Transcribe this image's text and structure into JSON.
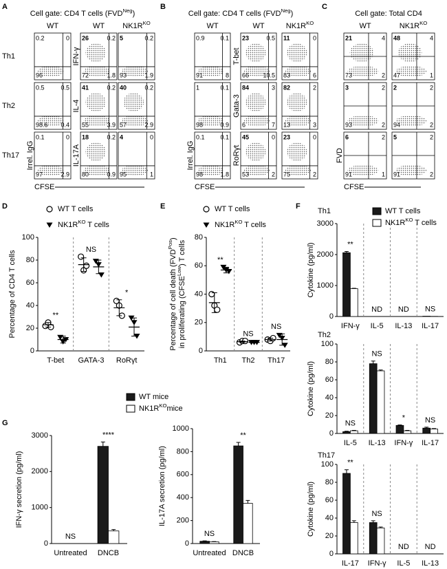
{
  "panel_letters": [
    "A",
    "B",
    "C",
    "D",
    "E",
    "F",
    "G"
  ],
  "flow_panels": [
    {
      "title": [
        "Cell gate: CD4 T cells (FVD",
        "Neg",
        ")"
      ],
      "columns": [
        "WT",
        "WT",
        [
          "NK1R",
          "KO"
        ]
      ],
      "row_labels": [
        "Th1",
        "Th2",
        "Th17"
      ],
      "xlabel": "CFSE",
      "plots": [
        [
          {
            "quadrants": [
              0.2,
              0,
              96,
              null
            ]
          },
          {
            "ylabel": "IFN-γ",
            "quadrants": [
              26,
              0.2,
              72,
              1.8
            ]
          },
          {
            "quadrants": [
              5,
              0.2,
              93,
              1.9
            ]
          }
        ],
        [
          {
            "quadrants": [
              0.5,
              0.5,
              98.6,
              0.4
            ]
          },
          {
            "ylabel": "IL-4",
            "quadrants": [
              41,
              0.2,
              55,
              3.9
            ]
          },
          {
            "quadrants": [
              40,
              0.2,
              57,
              2.9
            ]
          }
        ],
        [
          {
            "ylabel": "Irrel. IgG",
            "quadrants": [
              0.1,
              0,
              97,
              2.9
            ]
          },
          {
            "ylabel": "IL-17A",
            "quadrants": [
              18,
              0.2,
              80,
              0.9
            ]
          },
          {
            "quadrants": [
              4,
              0,
              95,
              1
            ]
          }
        ]
      ]
    },
    {
      "title": [
        "Cell gate: CD4 T cells (FVD",
        "Neg",
        ")"
      ],
      "columns": [
        "WT",
        "WT",
        [
          "NK1R",
          "KO"
        ]
      ],
      "xlabel": "CFSE",
      "plots": [
        [
          {
            "quadrants": [
              0.9,
              0.1,
              91,
              8
            ]
          },
          {
            "ylabel": "T-bet",
            "quadrants": [
              23,
              0.5,
              66,
              10.5
            ]
          },
          {
            "quadrants": [
              11,
              0,
              83,
              6
            ]
          }
        ],
        [
          {
            "quadrants": [
              1,
              0.1,
              98,
              0.9
            ]
          },
          {
            "ylabel": "Gata-3",
            "quadrants": [
              84,
              3,
              6,
              7
            ]
          },
          {
            "quadrants": [
              82,
              2,
              13,
              3
            ]
          }
        ],
        [
          {
            "ylabel": "Irrel. IgG",
            "quadrants": [
              0.1,
              0.1,
              98,
              1.8
            ]
          },
          {
            "ylabel": "RoRγt",
            "quadrants": [
              45,
              0,
              53,
              2
            ]
          },
          {
            "quadrants": [
              23,
              0,
              75,
              2
            ]
          }
        ]
      ]
    },
    {
      "title": "Cell gate: Total CD4",
      "columns": [
        "WT",
        [
          "NK1R",
          "KO"
        ]
      ],
      "xlabel": "CFSE",
      "plots": [
        [
          {
            "quadrants": [
              21,
              4,
              73,
              2
            ]
          },
          {
            "quadrants": [
              48,
              4,
              47,
              1
            ]
          }
        ],
        [
          {
            "quadrants": [
              3,
              2,
              93,
              2
            ]
          },
          {
            "quadrants": [
              2,
              2,
              94,
              2
            ]
          }
        ],
        [
          {
            "ylabel": "FVD",
            "quadrants": [
              6,
              2,
              91,
              1
            ]
          },
          {
            "quadrants": [
              5,
              2,
              91,
              2
            ]
          }
        ]
      ]
    }
  ],
  "chart_data": [
    {
      "type": "dot",
      "ylabel": "Percentage of CD4 T cells",
      "categories": [
        "T-bet",
        "GATA-3",
        "RoRγt"
      ],
      "ylim": [
        0,
        100
      ],
      "yticks": [
        0,
        20,
        40,
        60,
        80,
        100
      ],
      "separators": true,
      "series": [
        {
          "name": "WT T cells",
          "color": "#000000",
          "marker": "circle",
          "values": [
            23,
            76,
            38
          ],
          "errors": [
            2,
            6,
            7
          ],
          "points": [
            [
              22,
              25,
              21
            ],
            [
              83,
              71,
              75
            ],
            [
              44,
              40,
              31
            ]
          ]
        },
        {
          "name": [
            "NK1R",
            "KO",
            " T cells"
          ],
          "color": "#000000",
          "marker": "triangle",
          "values": [
            10,
            74,
            21
          ],
          "errors": [
            3,
            6,
            8
          ],
          "points": [
            [
              12,
              8,
              10
            ],
            [
              79,
              76,
              67
            ],
            [
              29,
              25,
              13
            ]
          ]
        }
      ],
      "annotations": [
        "**",
        "NS",
        "*"
      ]
    },
    {
      "type": "dot",
      "ylabel": [
        [
          "Percentage of cell death (FVD",
          "Pos",
          ")"
        ],
        [
          "in proliferating (CFSE",
          "Low",
          ") T cells"
        ]
      ],
      "categories": [
        "Th1",
        "Th2",
        "Th17"
      ],
      "ylim": [
        0,
        80
      ],
      "yticks": [
        0,
        20,
        40,
        60,
        80
      ],
      "separators": true,
      "series": [
        {
          "name": "WT T cells",
          "color": "#000000",
          "marker": "circle",
          "values": [
            34,
            6.5,
            8
          ],
          "errors": [
            7,
            0.5,
            1
          ],
          "points": [
            [
              40,
              32,
              29
            ],
            [
              6,
              7,
              7
            ],
            [
              8,
              7,
              9
            ]
          ]
        },
        {
          "name": [
            "NK1R",
            "KO",
            " T cells"
          ],
          "color": "#000000",
          "marker": "triangle",
          "values": [
            57,
            6,
            8
          ],
          "errors": [
            2,
            0.3,
            4
          ],
          "points": [
            [
              59,
              57,
              56
            ],
            [
              6,
              6,
              6
            ],
            [
              11,
              9,
              4
            ]
          ]
        }
      ],
      "annotations": [
        "**",
        "NS",
        "NS"
      ]
    },
    {
      "type": "bar",
      "title": "Th1",
      "ylabel": "Cytokine (pg/ml)",
      "categories": [
        "IFN-γ",
        "IL-5",
        "IL-13",
        "IL-17"
      ],
      "ylim": [
        0,
        3000
      ],
      "yticks": [
        0,
        1000,
        2000,
        3000
      ],
      "separators": true,
      "series": [
        {
          "name": "WT T cells",
          "color": "#1a1a1a",
          "values": [
            2060,
            null,
            null,
            10
          ],
          "errors": [
            40,
            null,
            null,
            0
          ]
        },
        {
          "name": [
            "NK1R",
            "KO",
            " T cells"
          ],
          "color": "#ffffff",
          "values": [
            900,
            null,
            null,
            5
          ],
          "errors": [
            10,
            null,
            null,
            0
          ]
        }
      ],
      "annotations": [
        "**",
        "ND",
        "ND",
        "NS"
      ]
    },
    {
      "type": "bar",
      "title": "Th2",
      "ylabel": "Cytokine (pg/ml)",
      "categories": [
        "IL-5",
        "IL-13",
        "IFN-γ",
        "IL-17"
      ],
      "ylim": [
        0,
        100
      ],
      "yticks": [
        0,
        20,
        40,
        60,
        80,
        100
      ],
      "separators": true,
      "series": [
        {
          "color": "#1a1a1a",
          "values": [
            2,
            78,
            9,
            6
          ],
          "errors": [
            0.5,
            3,
            0.5,
            1
          ]
        },
        {
          "color": "#ffffff",
          "values": [
            3,
            70,
            3,
            5
          ],
          "errors": [
            0.5,
            1,
            0.5,
            0.5
          ]
        }
      ],
      "annotations": [
        "NS",
        "NS",
        "*",
        "NS"
      ]
    },
    {
      "type": "bar",
      "title": "Th17",
      "ylabel": "Cytokine (pg/ml)",
      "categories": [
        "IL-17",
        "IFN-γ",
        "IL-5",
        "IL-13"
      ],
      "ylim": [
        0,
        100
      ],
      "yticks": [
        0,
        20,
        40,
        60,
        80,
        100
      ],
      "separators": true,
      "series": [
        {
          "color": "#1a1a1a",
          "values": [
            90,
            35,
            null,
            null
          ],
          "errors": [
            4,
            2,
            null,
            null
          ]
        },
        {
          "color": "#ffffff",
          "values": [
            35,
            29,
            null,
            null
          ],
          "errors": [
            2,
            1,
            null,
            null
          ]
        }
      ],
      "annotations": [
        "**",
        "NS",
        "ND",
        "ND"
      ]
    },
    {
      "type": "bar",
      "ylabel": "IFN-γ secretion (pg/ml)",
      "categories": [
        "Untreated",
        "DNCB"
      ],
      "ylim": [
        0,
        3000
      ],
      "yticks": [
        0,
        1000,
        2000,
        3000
      ],
      "separators": false,
      "series": [
        {
          "name": "WT mice",
          "color": "#1a1a1a",
          "values": [
            0,
            2700
          ],
          "errors": [
            0,
            120
          ]
        },
        {
          "name": [
            "NK1R",
            "KO",
            "mice"
          ],
          "color": "#ffffff",
          "values": [
            0,
            350
          ],
          "errors": [
            0,
            40
          ]
        }
      ],
      "annotations": [
        "NS",
        "****"
      ]
    },
    {
      "type": "bar",
      "ylabel": "IL-17A secretion (pg/ml)",
      "categories": [
        "Untreated",
        "DNCB"
      ],
      "ylim": [
        0,
        1000
      ],
      "yticks": [
        0,
        200,
        400,
        600,
        800,
        1000
      ],
      "separators": false,
      "series": [
        {
          "color": "#1a1a1a",
          "values": [
            20,
            850
          ],
          "errors": [
            3,
            30
          ]
        },
        {
          "color": "#ffffff",
          "values": [
            15,
            350
          ],
          "errors": [
            2,
            25
          ]
        }
      ],
      "annotations": [
        "NS",
        "**"
      ]
    }
  ]
}
